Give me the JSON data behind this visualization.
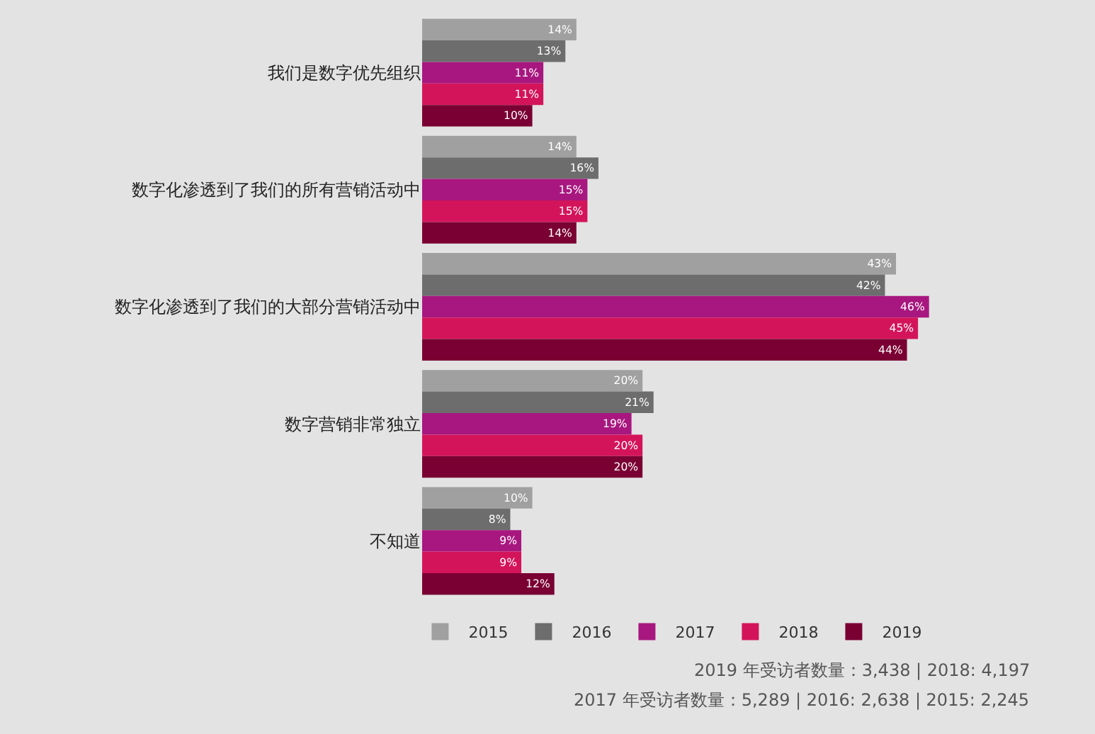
{
  "chart_data": {
    "type": "bar",
    "orientation": "horizontal",
    "legend": "bottom",
    "grid": false,
    "categories": [
      "我们是数字优先组织",
      "数字化渗透到了我们的所有营销活动中",
      "数字化渗透到了我们的大部分营销活动中",
      "数字营销非常独立",
      "不知道"
    ],
    "series": [
      {
        "name": "2015",
        "color": "#a0a0a0",
        "values": [
          14,
          14,
          43,
          20,
          10
        ],
        "value_labels": [
          "14%",
          "14%",
          "43%",
          "20%",
          "10%"
        ]
      },
      {
        "name": "2016",
        "color": "#6d6d6d",
        "values": [
          13,
          16,
          42,
          21,
          8
        ],
        "value_labels": [
          "13%",
          "16%",
          "42%",
          "21%",
          "8%"
        ]
      },
      {
        "name": "2017",
        "color": "#a8177f",
        "values": [
          11,
          15,
          46,
          19,
          9
        ],
        "value_labels": [
          "11%",
          "15%",
          "46%",
          "19%",
          "9%"
        ]
      },
      {
        "name": "2018",
        "color": "#d4145a",
        "values": [
          11,
          15,
          45,
          20,
          9
        ],
        "value_labels": [
          "11%",
          "15%",
          "45%",
          "20%",
          "9%"
        ]
      },
      {
        "name": "2019",
        "color": "#7a0033",
        "values": [
          10,
          14,
          44,
          20,
          12
        ],
        "value_labels": [
          "10%",
          "14%",
          "44%",
          "20%",
          "12%"
        ]
      }
    ],
    "annotations": [
      "2019 年受访者数量：3,438 | 2018: 4,197",
      "2017 年受访者数量：5,289 | 2016: 2,638 | 2015: 2,245"
    ]
  }
}
